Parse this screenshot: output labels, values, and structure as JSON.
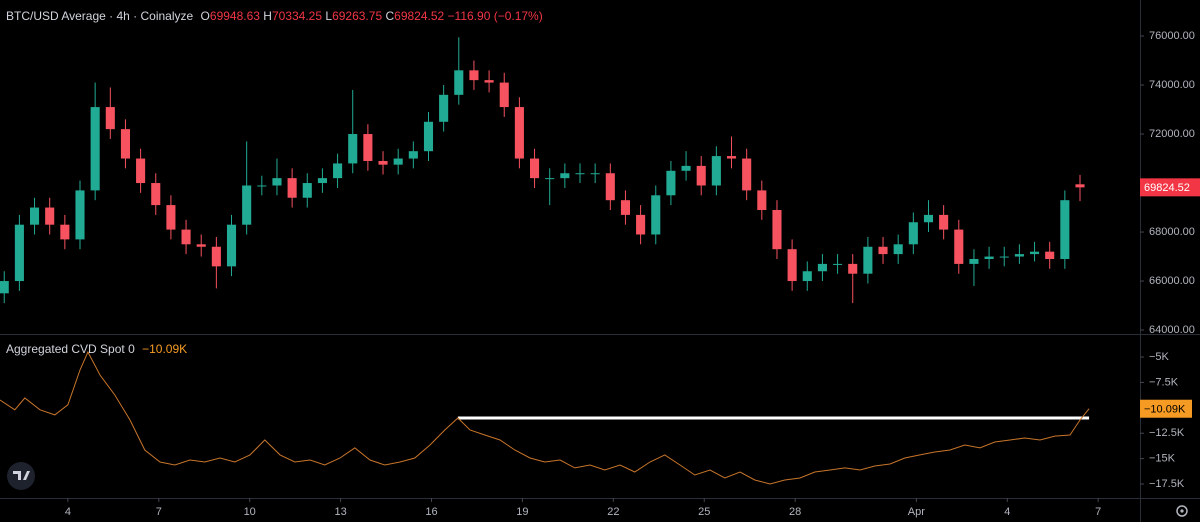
{
  "chart_data": [
    {
      "type": "candlestick",
      "title": "BTC/USD Average · 4h · Coinalyze",
      "ohlc_labels": [
        "O",
        "H",
        "L",
        "C"
      ],
      "change_label": "−116.90 (−0.17%)",
      "up_color": "#22ab94",
      "down_color": "#f7525f",
      "price_tag_color": "#f23645",
      "x": [
        1.9,
        2.4,
        2.9,
        3.4,
        3.9,
        4.4,
        4.9,
        5.4,
        5.9,
        6.4,
        6.9,
        7.4,
        7.9,
        8.4,
        8.9,
        9.4,
        9.9,
        10.4,
        10.9,
        11.4,
        11.9,
        12.4,
        12.9,
        13.4,
        13.9,
        14.4,
        14.9,
        15.4,
        15.9,
        16.4,
        16.9,
        17.4,
        17.9,
        18.4,
        18.9,
        19.4,
        19.9,
        20.4,
        20.9,
        21.4,
        21.9,
        22.4,
        22.9,
        23.4,
        23.9,
        24.4,
        24.9,
        25.4,
        25.9,
        26.4,
        26.9,
        27.4,
        27.9,
        28.4,
        28.9,
        29.4,
        29.9,
        30.4,
        30.9,
        31.4,
        31.9,
        32.4,
        32.9,
        33.4,
        33.9,
        34.4,
        34.9,
        35.4,
        35.9,
        36.4,
        36.9,
        37.4
      ],
      "open": [
        65500,
        66000,
        68300,
        69000,
        68300,
        67700,
        69700,
        73100,
        72200,
        71000,
        70000,
        69100,
        68100,
        67500,
        67400,
        66600,
        68300,
        69900,
        69900,
        70200,
        69400,
        70000,
        70200,
        70800,
        72000,
        70900,
        70750,
        71000,
        71300,
        72500,
        73600,
        74600,
        74200,
        74100,
        73100,
        71000,
        70200,
        70200,
        70400,
        70400,
        70400,
        69300,
        68700,
        67900,
        69500,
        70500,
        70700,
        69900,
        71100,
        71000,
        69700,
        68900,
        67300,
        66000,
        66400,
        66700,
        66700,
        66300,
        67400,
        67100,
        67500,
        68400,
        68700,
        68100,
        66700,
        66900,
        67000,
        67000,
        67100,
        67200,
        66900,
        69948.63
      ],
      "high": [
        66400,
        68700,
        69400,
        69400,
        68700,
        70100,
        74100,
        73900,
        72600,
        71400,
        70400,
        69500,
        68500,
        67900,
        67800,
        68700,
        71700,
        70300,
        71000,
        70600,
        70400,
        70600,
        71200,
        73800,
        72400,
        71300,
        71400,
        71700,
        72900,
        74000,
        75950,
        75000,
        74600,
        74500,
        73500,
        71400,
        70600,
        70800,
        70800,
        70800,
        70800,
        69700,
        69100,
        69900,
        70900,
        71300,
        71100,
        71500,
        71900,
        71400,
        70100,
        69300,
        67700,
        66800,
        67100,
        67100,
        67100,
        67800,
        67800,
        67900,
        68800,
        69300,
        69100,
        68500,
        67300,
        67400,
        67400,
        67500,
        67600,
        67600,
        69700,
        70334.25
      ],
      "low": [
        65100,
        65600,
        67900,
        67900,
        67300,
        67300,
        69300,
        71800,
        70600,
        69600,
        68700,
        67700,
        67100,
        67000,
        65700,
        66200,
        67900,
        69500,
        69500,
        69000,
        69000,
        69600,
        69800,
        70400,
        70500,
        70350,
        70350,
        70600,
        70900,
        72100,
        73200,
        73800,
        73700,
        72700,
        70600,
        69800,
        69100,
        69800,
        70000,
        70000,
        68900,
        68300,
        67500,
        67500,
        69100,
        70100,
        69500,
        69500,
        70600,
        69300,
        68500,
        66900,
        65600,
        65600,
        66000,
        66300,
        65100,
        65900,
        66700,
        66700,
        67100,
        68000,
        67700,
        66300,
        65800,
        66500,
        66600,
        66700,
        66800,
        66500,
        66500,
        69263.75
      ],
      "close": [
        66000,
        68300,
        69000,
        68300,
        67700,
        69700,
        73100,
        72200,
        71000,
        70000,
        69100,
        68100,
        67500,
        67400,
        66600,
        68300,
        69900,
        69900,
        70200,
        69400,
        70000,
        70200,
        70800,
        72000,
        70900,
        70750,
        71000,
        71300,
        72500,
        73600,
        74600,
        74200,
        74100,
        73100,
        71000,
        70200,
        70200,
        70400,
        70400,
        70400,
        69300,
        68700,
        67900,
        69500,
        70500,
        70700,
        69900,
        71100,
        71000,
        69700,
        68900,
        67300,
        66000,
        66400,
        66700,
        66700,
        66300,
        67400,
        67100,
        67500,
        68400,
        68700,
        68100,
        66700,
        66900,
        67000,
        67000,
        67100,
        67200,
        66900,
        69300,
        69824.52
      ],
      "xlim": [
        1.76,
        39.38
      ],
      "ylim": [
        63880,
        77470
      ],
      "yticks": [
        {
          "value": 64000,
          "label": "64000.00"
        },
        {
          "value": 66000,
          "label": "66000.00"
        },
        {
          "value": 68000,
          "label": "68000.00"
        },
        {
          "value": 70000,
          "label": "70000.00"
        },
        {
          "value": 72000,
          "label": "72000.00"
        },
        {
          "value": 74000,
          "label": "74000.00"
        },
        {
          "value": 76000,
          "label": "76000.00"
        }
      ]
    },
    {
      "type": "line",
      "title": "Aggregated CVD Spot 0",
      "color": "#c8752a",
      "tag_color": "#f59b23",
      "x": [
        1.76,
        2.25,
        2.58,
        3.08,
        3.57,
        4.0,
        4.4,
        4.66,
        5.06,
        5.55,
        6.05,
        6.54,
        7.04,
        7.53,
        8.03,
        8.52,
        9.02,
        9.51,
        10.01,
        10.5,
        11.0,
        11.49,
        11.99,
        12.48,
        12.98,
        13.47,
        13.97,
        14.46,
        14.96,
        15.45,
        15.95,
        16.44,
        16.87,
        17.27,
        17.76,
        18.26,
        18.75,
        19.25,
        19.74,
        20.24,
        20.73,
        21.23,
        21.72,
        22.22,
        22.71,
        23.21,
        23.7,
        24.2,
        24.69,
        25.19,
        25.68,
        26.18,
        26.67,
        27.17,
        27.66,
        28.16,
        28.65,
        29.15,
        29.64,
        30.14,
        30.63,
        31.13,
        31.62,
        32.12,
        32.61,
        33.11,
        33.6,
        34.1,
        34.59,
        35.09,
        35.58,
        36.08,
        36.57,
        37.07,
        37.4,
        37.7
      ],
      "values": [
        -9230,
        -10200,
        -9030,
        -10200,
        -10700,
        -9700,
        -6280,
        -4510,
        -6770,
        -8740,
        -11200,
        -14150,
        -15330,
        -15630,
        -15140,
        -15330,
        -14940,
        -15330,
        -14640,
        -13170,
        -14640,
        -15330,
        -15140,
        -15630,
        -14940,
        -13950,
        -15140,
        -15630,
        -15330,
        -14940,
        -13660,
        -12180,
        -11000,
        -12180,
        -12680,
        -13170,
        -14150,
        -14940,
        -15330,
        -15140,
        -15920,
        -15630,
        -16120,
        -15630,
        -16320,
        -15330,
        -14640,
        -15630,
        -16610,
        -16120,
        -16910,
        -16320,
        -17110,
        -17500,
        -17110,
        -16910,
        -16320,
        -16120,
        -15920,
        -16120,
        -15730,
        -15530,
        -14940,
        -14640,
        -14350,
        -14150,
        -13660,
        -13950,
        -13370,
        -13170,
        -12970,
        -13170,
        -12780,
        -12680,
        -11200,
        -10090
      ],
      "last_label": "−10.09K",
      "annotation_line": {
        "x": [
          16.87,
          37.7
        ],
        "value": -11000,
        "color": "#ffffff"
      },
      "xlim": [
        1.76,
        39.38
      ],
      "ylim": [
        -18780,
        -2930
      ],
      "yticks": [
        {
          "value": -17500,
          "label": "−17.5K"
        },
        {
          "value": -15000,
          "label": "−15K"
        },
        {
          "value": -12500,
          "label": "−12.5K"
        },
        {
          "value": -10000,
          "label": "−10K"
        },
        {
          "value": -7500,
          "label": "−7.5K"
        },
        {
          "value": -5000,
          "label": "−5K"
        }
      ],
      "xticks": [
        4,
        7,
        10,
        13,
        16,
        19,
        22,
        25,
        28,
        {
          "value": 32,
          "label": "Apr"
        },
        {
          "value": 35,
          "label": "4"
        },
        {
          "value": 38,
          "label": "7"
        }
      ]
    }
  ]
}
